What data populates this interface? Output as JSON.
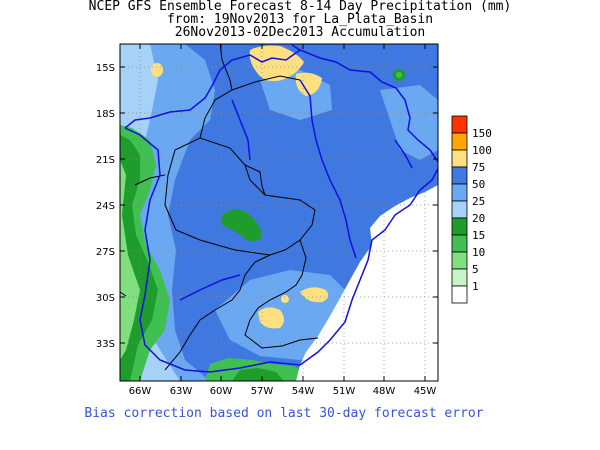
{
  "title": {
    "line1": "NCEP GFS Ensemble Forecast 8-14 Day Precipitation (mm)",
    "line2": "from: 19Nov2013   for La_Plata_Basin",
    "line3": "26Nov2013-02Dec2013 Accumulation"
  },
  "footer": "Bias correction based on last 30-day forecast error",
  "axes": {
    "lat_ticks": [
      "15S",
      "18S",
      "21S",
      "24S",
      "27S",
      "30S",
      "33S"
    ],
    "lon_ticks": [
      "66W",
      "63W",
      "60W",
      "57W",
      "54W",
      "51W",
      "48W",
      "45W"
    ]
  },
  "legend": {
    "labels": [
      "150",
      "100",
      "75",
      "50",
      "25",
      "20",
      "15",
      "10",
      "5",
      "1"
    ],
    "colors": [
      "#ff3300",
      "#ffa500",
      "#ffe080",
      "#3f78e0",
      "#6aa9f2",
      "#a6d2f8",
      "#1e9c2c",
      "#40c050",
      "#80e080",
      "#c8f5c8",
      "#ffffff"
    ]
  },
  "colors": {
    "base_blue": "#3f78e0",
    "light_blue": "#6aa9f2",
    "pale_blue": "#a6d2f8",
    "dark_green": "#1e9c2c",
    "green": "#40c050",
    "light_green": "#80e080",
    "yellow": "#ffe080",
    "border_blue": "#1010e0"
  }
}
